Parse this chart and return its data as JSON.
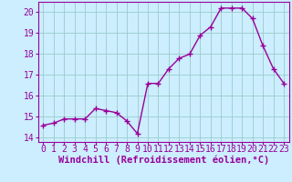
{
  "x": [
    0,
    1,
    2,
    3,
    4,
    5,
    6,
    7,
    8,
    9,
    10,
    11,
    12,
    13,
    14,
    15,
    16,
    17,
    18,
    19,
    20,
    21,
    22,
    23
  ],
  "y": [
    14.6,
    14.7,
    14.9,
    14.9,
    14.9,
    15.4,
    15.3,
    15.2,
    14.8,
    14.2,
    16.6,
    16.6,
    17.3,
    17.8,
    18.0,
    18.9,
    19.3,
    20.2,
    20.2,
    20.2,
    19.7,
    18.4,
    17.3,
    16.6
  ],
  "ylim": [
    13.8,
    20.5
  ],
  "yticks": [
    14,
    15,
    16,
    17,
    18,
    19,
    20
  ],
  "xticks": [
    0,
    1,
    2,
    3,
    4,
    5,
    6,
    7,
    8,
    9,
    10,
    11,
    12,
    13,
    14,
    15,
    16,
    17,
    18,
    19,
    20,
    21,
    22,
    23
  ],
  "xlabel": "Windchill (Refroidissement éolien,°C)",
  "line_color": "#990099",
  "marker": "+",
  "bg_color": "#cceeff",
  "grid_color": "#99cccc",
  "xlabel_fontsize": 7.5,
  "tick_fontsize": 7,
  "line_width": 1.0,
  "marker_size": 4,
  "marker_edge_width": 1.0
}
